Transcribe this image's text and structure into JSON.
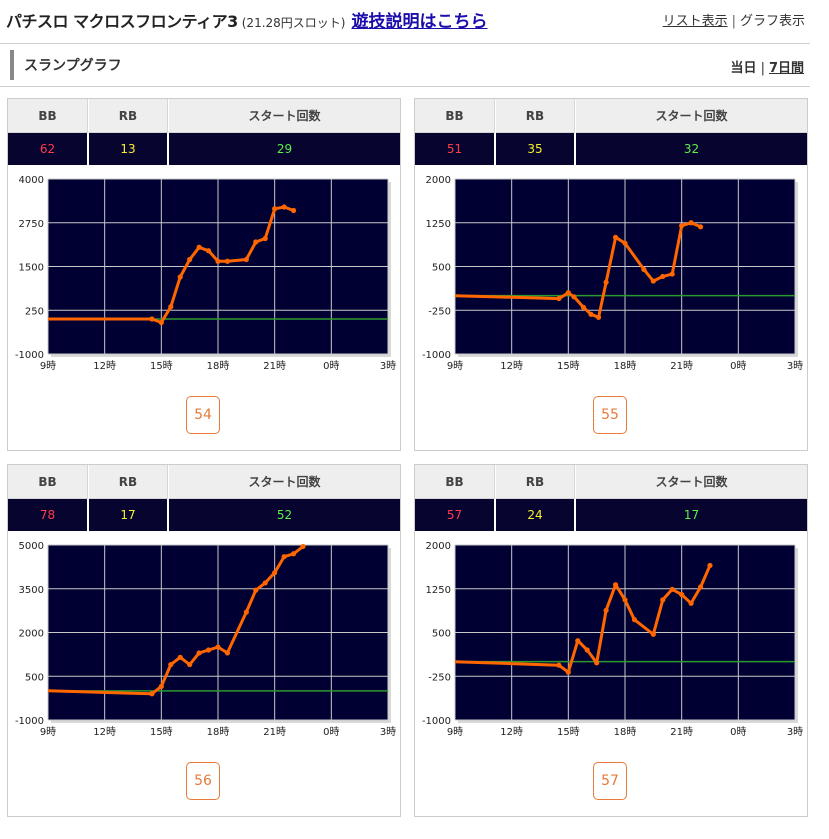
{
  "header": {
    "machine_name": "パチスロ マクロスフロンティア3",
    "rate": "(21.28円スロット)",
    "howto_link": "遊技説明はこちら",
    "list_view": "リスト表示",
    "graph_view": "グラフ表示",
    "separator": "|"
  },
  "section": {
    "title": "スランプグラフ",
    "today": "当日",
    "week": "7日間",
    "separator": "|"
  },
  "stats_labels": {
    "bb": "BB",
    "rb": "RB",
    "start": "スタート回数"
  },
  "x_ticks": [
    "9時",
    "12時",
    "15時",
    "18時",
    "21時",
    "0時",
    "3時"
  ],
  "colors": {
    "plot_bg": "#000033",
    "line": "#ff6600",
    "baseline": "#2d9a2d",
    "grid": "#c8c8c8"
  },
  "cards": [
    {
      "number": "54",
      "bb": "62",
      "rb": "13",
      "start": "29",
      "y_ticks": [
        "4000",
        "2750",
        "1500",
        "250",
        "-1000"
      ],
      "y_range": [
        -1000,
        4000
      ],
      "baseline": 0,
      "series": [
        [
          9,
          0
        ],
        [
          14.5,
          0
        ],
        [
          15,
          -100
        ],
        [
          15.5,
          350
        ],
        [
          16,
          1200
        ],
        [
          16.5,
          1700
        ],
        [
          17,
          2050
        ],
        [
          17.5,
          1950
        ],
        [
          18,
          1650
        ],
        [
          18.5,
          1650
        ],
        [
          19.5,
          1700
        ],
        [
          20,
          2200
        ],
        [
          20.5,
          2300
        ],
        [
          21,
          3150
        ],
        [
          21.5,
          3200
        ],
        [
          22,
          3100
        ]
      ]
    },
    {
      "number": "55",
      "bb": "51",
      "rb": "35",
      "start": "32",
      "y_ticks": [
        "2000",
        "1250",
        "500",
        "-250",
        "-1000"
      ],
      "y_range": [
        -1000,
        2000
      ],
      "baseline": 0,
      "series": [
        [
          9,
          0
        ],
        [
          14.5,
          -50
        ],
        [
          15,
          50
        ],
        [
          15.3,
          -20
        ],
        [
          15.8,
          -200
        ],
        [
          16.2,
          -320
        ],
        [
          16.6,
          -370
        ],
        [
          17,
          230
        ],
        [
          17.5,
          1000
        ],
        [
          18,
          900
        ],
        [
          19,
          450
        ],
        [
          19.5,
          250
        ],
        [
          20,
          330
        ],
        [
          20.5,
          370
        ],
        [
          21,
          1200
        ],
        [
          21.5,
          1250
        ],
        [
          22,
          1180
        ]
      ]
    },
    {
      "number": "56",
      "bb": "78",
      "rb": "17",
      "start": "52",
      "y_ticks": [
        "5000",
        "3500",
        "2000",
        "500",
        "-1000"
      ],
      "y_range": [
        -1000,
        5000
      ],
      "baseline": 0,
      "series": [
        [
          9,
          0
        ],
        [
          14.5,
          -100
        ],
        [
          15,
          150
        ],
        [
          15.5,
          900
        ],
        [
          16,
          1150
        ],
        [
          16.5,
          900
        ],
        [
          17,
          1300
        ],
        [
          17.5,
          1400
        ],
        [
          18,
          1500
        ],
        [
          18.5,
          1300
        ],
        [
          19.5,
          2700
        ],
        [
          20,
          3450
        ],
        [
          20.5,
          3700
        ],
        [
          21,
          4050
        ],
        [
          21.5,
          4600
        ],
        [
          22,
          4700
        ],
        [
          22.5,
          4950
        ]
      ]
    },
    {
      "number": "57",
      "bb": "57",
      "rb": "24",
      "start": "17",
      "y_ticks": [
        "2000",
        "1250",
        "500",
        "-250",
        "-1000"
      ],
      "y_range": [
        -1000,
        2000
      ],
      "baseline": 0,
      "series": [
        [
          9,
          0
        ],
        [
          14.5,
          -60
        ],
        [
          15,
          -180
        ],
        [
          15.5,
          360
        ],
        [
          16,
          200
        ],
        [
          16.5,
          -20
        ],
        [
          17,
          880
        ],
        [
          17.5,
          1320
        ],
        [
          18,
          1060
        ],
        [
          18.5,
          720
        ],
        [
          19.5,
          470
        ],
        [
          20,
          1060
        ],
        [
          20.5,
          1240
        ],
        [
          21,
          1150
        ],
        [
          21.5,
          1000
        ],
        [
          22,
          1280
        ],
        [
          22.5,
          1650
        ]
      ]
    }
  ]
}
